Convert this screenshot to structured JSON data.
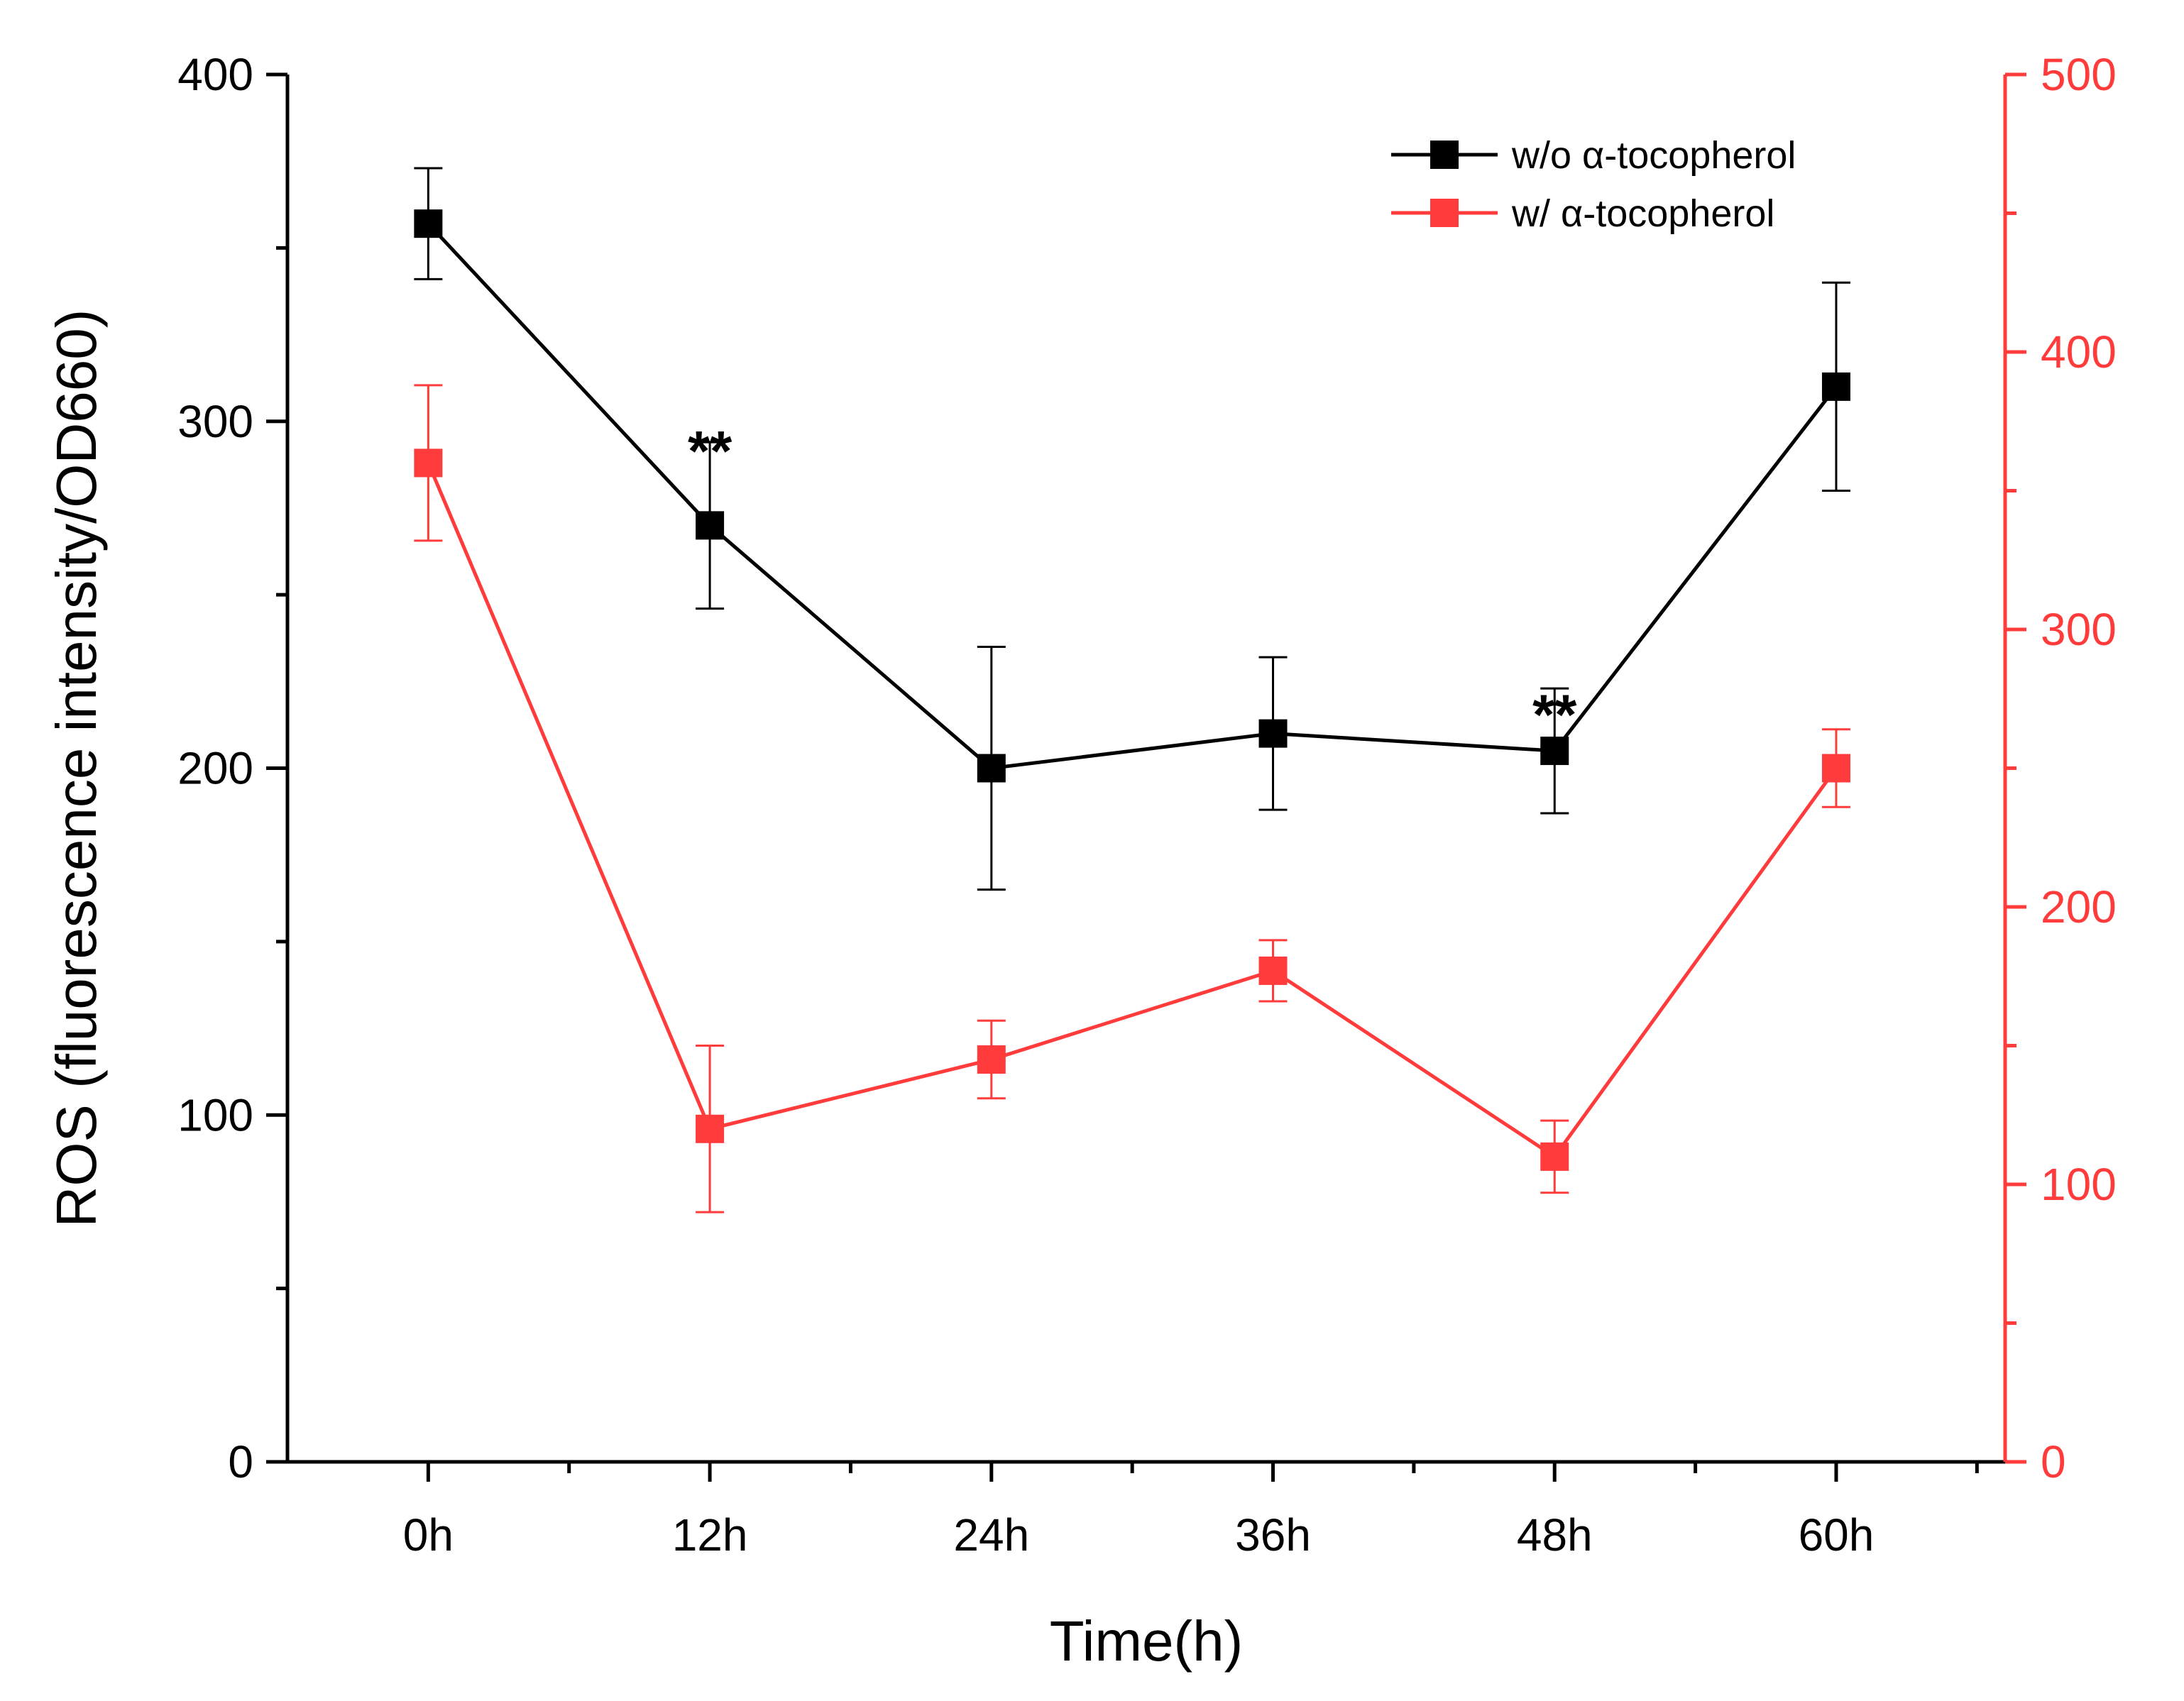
{
  "chart_data": {
    "type": "line",
    "title": "",
    "xlabel": "Time(h)",
    "ylabel": "ROS (fluorescence intensity/OD660)",
    "categories": [
      "0h",
      "12h",
      "24h",
      "36h",
      "48h",
      "60h"
    ],
    "left_axis": {
      "ylim": [
        0,
        400
      ],
      "ticks": [
        0,
        100,
        200,
        300,
        400
      ],
      "color": "#000000"
    },
    "right_axis": {
      "ylim": [
        0,
        500
      ],
      "ticks": [
        0,
        100,
        200,
        300,
        400,
        500
      ],
      "color": "#ff3b3b"
    },
    "series": [
      {
        "name": "w/o α-tocopherol",
        "axis": "left",
        "color": "#000000",
        "values": [
          357,
          270,
          200,
          210,
          205,
          310
        ],
        "error": [
          16,
          24,
          35,
          22,
          18,
          30
        ]
      },
      {
        "name": "w/ α-tocopherol",
        "axis": "right",
        "color": "#ff3b3b",
        "values": [
          360,
          120,
          145,
          177,
          110,
          250
        ],
        "error": [
          28,
          30,
          14,
          11,
          13,
          14
        ]
      }
    ],
    "annotations": [
      {
        "text": "**",
        "category": "12h",
        "value": 292
      },
      {
        "text": "**",
        "category": "48h",
        "value": 216
      }
    ],
    "legend_position": "top-right"
  }
}
